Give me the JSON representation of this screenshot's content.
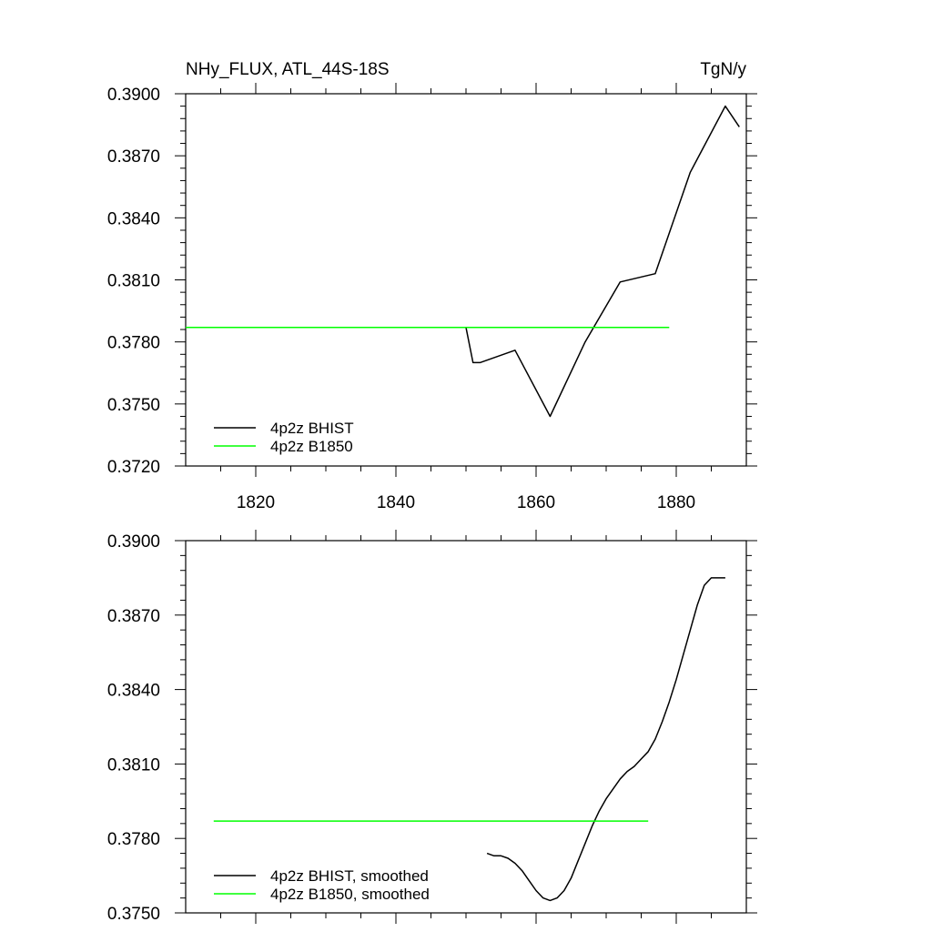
{
  "header": {
    "left_title": "NHy_FLUX, ATL_44S-18S",
    "right_title": "TgN/y"
  },
  "chart_data": [
    {
      "type": "line",
      "title": "NHy_FLUX, ATL_44S-18S",
      "units": "TgN/y",
      "xlim": [
        1810,
        1890
      ],
      "ylim": [
        0.372,
        0.39
      ],
      "xticks": [
        "1820",
        "1840",
        "1860",
        "1880"
      ],
      "yticks": [
        "0.3720",
        "0.3750",
        "0.3780",
        "0.3810",
        "0.3840",
        "0.3870",
        "0.3900"
      ],
      "grid": false,
      "legend_position": "bottom-left",
      "series": [
        {
          "name": "4p2z BHIST",
          "color": "#000000",
          "x": [
            1850,
            1851,
            1852,
            1857,
            1862,
            1867,
            1872,
            1877,
            1882,
            1887,
            1889
          ],
          "y": [
            0.3787,
            0.377,
            0.377,
            0.3776,
            0.3744,
            0.378,
            0.3809,
            0.3813,
            0.3862,
            0.3894,
            0.3884
          ]
        },
        {
          "name": "4p2z B1850",
          "color": "#00ff00",
          "x": [
            1810,
            1879
          ],
          "y": [
            0.3787,
            0.3787
          ]
        }
      ]
    },
    {
      "type": "line",
      "xlim": [
        1810,
        1890
      ],
      "ylim": [
        0.375,
        0.39
      ],
      "xticks": [],
      "yticks": [
        "0.3750",
        "0.3780",
        "0.3810",
        "0.3840",
        "0.3870",
        "0.3900"
      ],
      "grid": false,
      "legend_position": "bottom-left",
      "series": [
        {
          "name": "4p2z BHIST, smoothed",
          "color": "#000000",
          "x": [
            1853,
            1854,
            1855,
            1856,
            1857,
            1858,
            1859,
            1860,
            1861,
            1862,
            1863,
            1864,
            1865,
            1866,
            1867,
            1868,
            1869,
            1870,
            1871,
            1872,
            1873,
            1874,
            1875,
            1876,
            1877,
            1878,
            1879,
            1880,
            1881,
            1882,
            1883,
            1884,
            1885,
            1886,
            1887
          ],
          "y": [
            0.3774,
            0.3773,
            0.3773,
            0.3772,
            0.377,
            0.3767,
            0.3763,
            0.3759,
            0.3756,
            0.3755,
            0.3756,
            0.3759,
            0.3764,
            0.3771,
            0.3778,
            0.3785,
            0.3791,
            0.3796,
            0.38,
            0.3804,
            0.3807,
            0.3809,
            0.3812,
            0.3815,
            0.382,
            0.3827,
            0.3835,
            0.3844,
            0.3854,
            0.3864,
            0.3874,
            0.3882,
            0.3885,
            0.3885,
            0.3885
          ]
        },
        {
          "name": "4p2z B1850, smoothed",
          "color": "#00ff00",
          "x": [
            1814,
            1876
          ],
          "y": [
            0.3787,
            0.3787
          ]
        }
      ]
    }
  ]
}
